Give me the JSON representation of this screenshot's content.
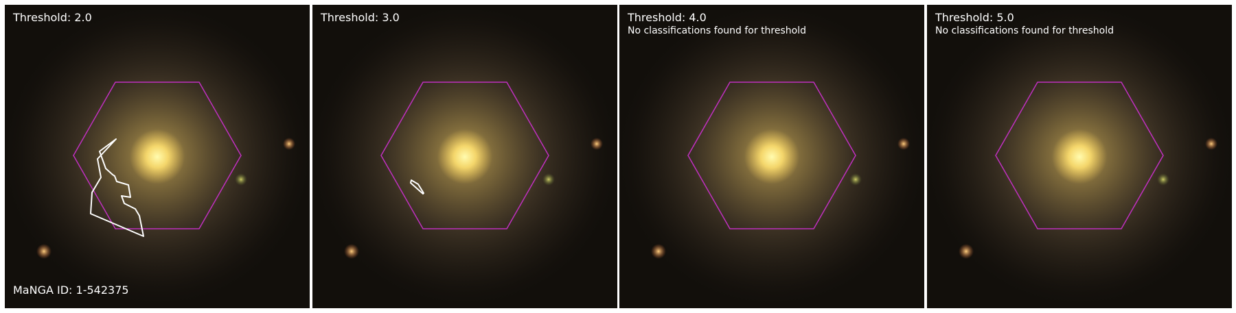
{
  "panels": [
    {
      "threshold_label": "Threshold: 2.0",
      "note": "",
      "has_contour": true
    },
    {
      "threshold_label": "Threshold: 3.0",
      "note": "",
      "has_contour": true
    },
    {
      "threshold_label": "Threshold: 4.0",
      "note": "No classifications found for threshold",
      "has_contour": false
    },
    {
      "threshold_label": "Threshold: 5.0",
      "note": "No classifications found for threshold",
      "has_contour": false
    }
  ],
  "manga_id_label": "MaNGA ID: 1-542375",
  "colors": {
    "background": "#120f0b",
    "hexagon": "#c030c0",
    "contour": "#ffffff",
    "text": "#ffffff",
    "galaxy_core": "#fff08a",
    "galaxy_halo": "#a08a4a"
  }
}
